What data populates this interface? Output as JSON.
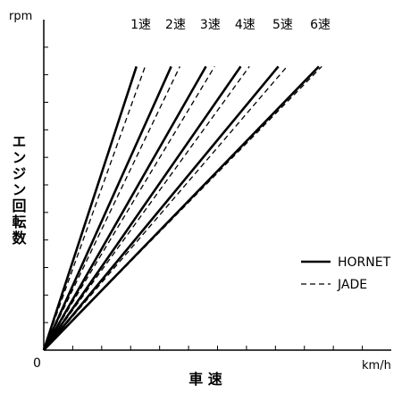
{
  "chart_data": {
    "type": "line",
    "title": "",
    "xlabel": "車 速",
    "ylabel": "エンジン回転数",
    "x_unit": "km/h",
    "y_unit": "rpm",
    "origin_label": "0",
    "xlim": [
      0,
      12
    ],
    "ylim": [
      0,
      12
    ],
    "x_ticks": [
      1,
      2,
      3,
      4,
      5,
      6,
      7,
      8,
      9,
      10,
      11
    ],
    "y_ticks": [
      1,
      2,
      3,
      4,
      5,
      6,
      7,
      8,
      9,
      10,
      11
    ],
    "legend": {
      "position": "right",
      "entries": [
        {
          "label": "HORNET",
          "style": "solid"
        },
        {
          "label": "JADE",
          "style": "dashed"
        }
      ]
    },
    "gear_labels": [
      "1速",
      "2速",
      "3速",
      "4速",
      "5速",
      "6速"
    ],
    "series": [
      {
        "name": "HORNET",
        "style": "solid",
        "lines": [
          {
            "x": [
              0,
              3.2
            ],
            "y": [
              0,
              10.3
            ]
          },
          {
            "x": [
              0,
              4.4
            ],
            "y": [
              0,
              10.3
            ]
          },
          {
            "x": [
              0,
              5.6
            ],
            "y": [
              0,
              10.3
            ]
          },
          {
            "x": [
              0,
              6.8
            ],
            "y": [
              0,
              10.3
            ]
          },
          {
            "x": [
              0,
              8.1
            ],
            "y": [
              0,
              10.3
            ]
          },
          {
            "x": [
              0,
              9.5
            ],
            "y": [
              0,
              10.3
            ]
          }
        ]
      },
      {
        "name": "JADE",
        "style": "dashed",
        "lines": [
          {
            "x": [
              0,
              3.5
            ],
            "y": [
              0,
              10.3
            ]
          },
          {
            "x": [
              0,
              4.7
            ],
            "y": [
              0,
              10.3
            ]
          },
          {
            "x": [
              0,
              5.9
            ],
            "y": [
              0,
              10.3
            ]
          },
          {
            "x": [
              0,
              7.1
            ],
            "y": [
              0,
              10.3
            ]
          },
          {
            "x": [
              0,
              8.4
            ],
            "y": [
              0,
              10.3
            ]
          },
          {
            "x": [
              0,
              9.6
            ],
            "y": [
              0,
              10.3
            ]
          }
        ]
      }
    ]
  }
}
